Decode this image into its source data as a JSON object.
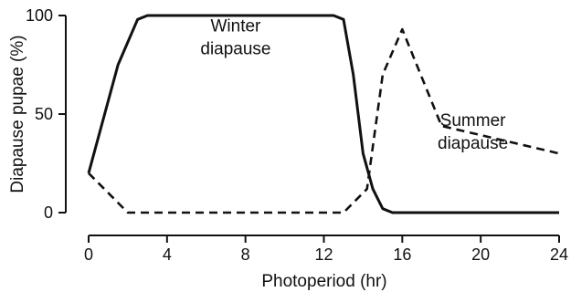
{
  "chart_data": {
    "type": "line",
    "xlabel": "Photoperiod (hr)",
    "ylabel": "Diapause pupae (%)",
    "xlim": [
      0,
      24
    ],
    "ylim": [
      0,
      100
    ],
    "x_ticks": [
      0,
      4,
      8,
      12,
      16,
      20,
      24
    ],
    "y_ticks": [
      0,
      50,
      100
    ],
    "grid": false,
    "series": [
      {
        "style": "solid",
        "color": "#111111",
        "x": [
          0,
          1.5,
          2.5,
          3,
          12.5,
          13,
          13.5,
          14,
          14.5,
          15,
          15.5,
          24
        ],
        "y": [
          20,
          75,
          98,
          100,
          100,
          98,
          70,
          30,
          12,
          2,
          0,
          0
        ]
      },
      {
        "style": "dashed",
        "color": "#111111",
        "x": [
          0,
          2,
          13,
          14.2,
          15,
          16,
          18,
          24
        ],
        "y": [
          20,
          0,
          0,
          12,
          70,
          93,
          44,
          30
        ]
      }
    ],
    "annotations": [
      {
        "lines": [
          "Winter",
          "diapause"
        ],
        "x": 7.5,
        "y": 92
      },
      {
        "lines": [
          "Summer",
          "diapause"
        ],
        "x": 19.6,
        "y": 44
      }
    ]
  }
}
